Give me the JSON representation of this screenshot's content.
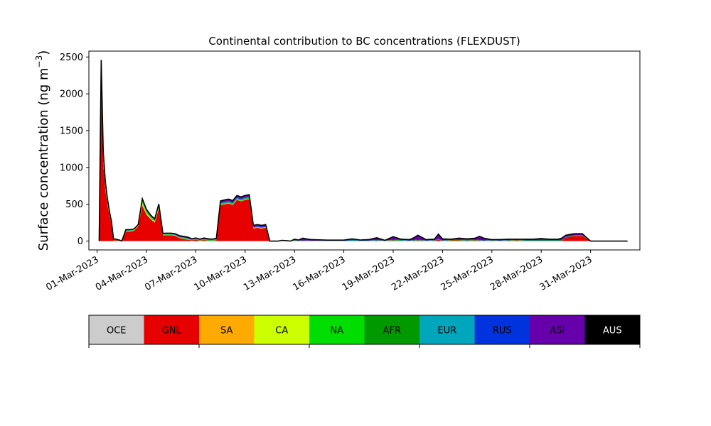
{
  "chart_data": {
    "type": "area",
    "title": "Continental contribution to BC concentrations (FLEXDUST)",
    "xlabel": "",
    "ylabel": "Surface concentration (ng m",
    "ylabel_sup": "−3",
    "ylabel_close": ")",
    "xlim": [
      "2023-02-28T12:00",
      "2023-04-03T00:00"
    ],
    "ylim": [
      -120,
      2580
    ],
    "yticks": [
      0,
      500,
      1000,
      1500,
      2000,
      2500
    ],
    "yticklabels": [
      "0",
      "500",
      "1000",
      "1500",
      "2000",
      "2500"
    ],
    "xticks": [
      "2023-03-01",
      "2023-03-04",
      "2023-03-07",
      "2023-03-10",
      "2023-03-13",
      "2023-03-16",
      "2023-03-19",
      "2023-03-22",
      "2023-03-25",
      "2023-03-28",
      "2023-03-31"
    ],
    "xticklabels": [
      "01-Mar-2023",
      "04-Mar-2023",
      "07-Mar-2023",
      "10-Mar-2023",
      "13-Mar-2023",
      "16-Mar-2023",
      "19-Mar-2023",
      "22-Mar-2023",
      "25-Mar-2023",
      "28-Mar-2023",
      "31-Mar-2023"
    ],
    "grid": false,
    "legend_position": "below",
    "regions": [
      {
        "name": "OCE",
        "color": "#cccccc",
        "text_color": "#000000"
      },
      {
        "name": "GNL",
        "color": "#e60000",
        "text_color": "#000000"
      },
      {
        "name": "SA",
        "color": "#ffaa00",
        "text_color": "#000000"
      },
      {
        "name": "CA",
        "color": "#ccff00",
        "text_color": "#000000"
      },
      {
        "name": "NA",
        "color": "#00dd00",
        "text_color": "#000000"
      },
      {
        "name": "AFR",
        "color": "#009900",
        "text_color": "#000000"
      },
      {
        "name": "EUR",
        "color": "#00a6bb",
        "text_color": "#000000"
      },
      {
        "name": "RUS",
        "color": "#0033dd",
        "text_color": "#000000"
      },
      {
        "name": "ASI",
        "color": "#6600aa",
        "text_color": "#000000"
      },
      {
        "name": "AUS",
        "color": "#000000",
        "text_color": "#ffffff"
      }
    ],
    "time": [
      "2023-03-01T03:00",
      "2023-03-01T06:00",
      "2023-03-01T09:00",
      "2023-03-01T12:00",
      "2023-03-01T15:00",
      "2023-03-01T18:00",
      "2023-03-01T21:00",
      "2023-03-02T00:00",
      "2023-03-02T03:00",
      "2023-03-02T06:00",
      "2023-03-02T09:00",
      "2023-03-02T12:00",
      "2023-03-02T18:00",
      "2023-03-03T00:00",
      "2023-03-03T06:00",
      "2023-03-03T12:00",
      "2023-03-03T18:00",
      "2023-03-04T00:00",
      "2023-03-04T06:00",
      "2023-03-04T12:00",
      "2023-03-04T18:00",
      "2023-03-05T00:00",
      "2023-03-05T06:00",
      "2023-03-05T12:00",
      "2023-03-05T18:00",
      "2023-03-06T00:00",
      "2023-03-06T06:00",
      "2023-03-06T12:00",
      "2023-03-06T18:00",
      "2023-03-07T00:00",
      "2023-03-07T06:00",
      "2023-03-07T12:00",
      "2023-03-07T18:00",
      "2023-03-08T00:00",
      "2023-03-08T06:00",
      "2023-03-08T12:00",
      "2023-03-08T18:00",
      "2023-03-09T00:00",
      "2023-03-09T06:00",
      "2023-03-09T12:00",
      "2023-03-09T18:00",
      "2023-03-10T00:00",
      "2023-03-10T06:00",
      "2023-03-10T12:00",
      "2023-03-10T18:00",
      "2023-03-11T00:00",
      "2023-03-11T06:00",
      "2023-03-11T12:00",
      "2023-03-11T18:00",
      "2023-03-12T00:00",
      "2023-03-12T06:00",
      "2023-03-12T12:00",
      "2023-03-12T18:00",
      "2023-03-13T00:00",
      "2023-03-13T06:00",
      "2023-03-13T12:00",
      "2023-03-14T00:00",
      "2023-03-15T00:00",
      "2023-03-15T12:00",
      "2023-03-16T00:00",
      "2023-03-16T12:00",
      "2023-03-17T00:00",
      "2023-03-17T12:00",
      "2023-03-18T00:00",
      "2023-03-18T12:00",
      "2023-03-19T00:00",
      "2023-03-19T12:00",
      "2023-03-20T00:00",
      "2023-03-20T06:00",
      "2023-03-20T12:00",
      "2023-03-21T00:00",
      "2023-03-21T12:00",
      "2023-03-21T18:00",
      "2023-03-22T00:00",
      "2023-03-22T12:00",
      "2023-03-23T00:00",
      "2023-03-23T12:00",
      "2023-03-24T00:00",
      "2023-03-24T06:00",
      "2023-03-24T12:00",
      "2023-03-25T00:00",
      "2023-03-25T12:00",
      "2023-03-26T00:00",
      "2023-03-26T12:00",
      "2023-03-27T00:00",
      "2023-03-27T12:00",
      "2023-03-28T00:00",
      "2023-03-28T12:00",
      "2023-03-29T00:00",
      "2023-03-29T06:00",
      "2023-03-29T12:00",
      "2023-03-29T18:00",
      "2023-03-30T00:00",
      "2023-03-30T12:00",
      "2023-03-31T00:00",
      "2023-03-31T12:00",
      "2023-04-01T00:00",
      "2023-04-01T12:00",
      "2023-04-02T00:00",
      "2023-04-02T06:00"
    ],
    "series": [
      {
        "values": [
          0,
          0,
          0,
          0,
          0,
          0,
          0,
          0,
          0,
          0,
          0,
          0,
          0,
          0,
          0,
          0,
          0,
          0,
          0,
          0,
          0,
          0,
          0,
          0,
          0,
          0,
          0,
          0,
          0,
          0,
          0,
          0,
          0,
          0,
          0,
          0,
          0,
          0,
          0,
          0,
          0,
          0,
          0,
          0,
          0,
          0,
          0,
          0,
          0,
          0,
          0,
          0,
          0,
          0,
          0,
          0,
          0,
          0,
          0,
          0,
          0,
          0,
          0,
          0,
          0,
          0,
          0,
          0,
          0,
          0,
          0,
          0,
          0,
          0,
          0,
          0,
          0,
          0,
          0,
          0,
          0,
          0,
          0,
          0,
          0,
          0,
          0,
          0,
          0,
          0,
          0,
          0,
          0,
          0,
          0,
          0,
          0,
          0,
          0,
          0
        ]
      },
      {
        "values": [
          0,
          2150,
          1050,
          700,
          500,
          350,
          230,
          10,
          15,
          10,
          5,
          0,
          130,
          130,
          140,
          200,
          480,
          360,
          300,
          250,
          440,
          80,
          80,
          80,
          70,
          40,
          30,
          20,
          10,
          20,
          5,
          15,
          5,
          5,
          10,
          490,
          500,
          510,
          490,
          560,
          540,
          560,
          570,
          170,
          180,
          170,
          180,
          0,
          0,
          0,
          0,
          0,
          0,
          0,
          0,
          0,
          0,
          0,
          0,
          0,
          0,
          0,
          0,
          5,
          0,
          10,
          0,
          0,
          5,
          10,
          0,
          5,
          20,
          0,
          10,
          10,
          5,
          10,
          5,
          0,
          5,
          0,
          5,
          10,
          5,
          5,
          5,
          5,
          5,
          5,
          50,
          60,
          70,
          70,
          0,
          0,
          0,
          0,
          0,
          0
        ]
      },
      {
        "values": [
          0,
          15,
          10,
          5,
          5,
          5,
          5,
          0,
          0,
          0,
          0,
          0,
          0,
          0,
          0,
          0,
          5,
          5,
          5,
          5,
          5,
          0,
          0,
          0,
          0,
          0,
          0,
          0,
          0,
          0,
          0,
          0,
          0,
          0,
          0,
          0,
          0,
          0,
          0,
          0,
          0,
          0,
          0,
          0,
          0,
          0,
          0,
          0,
          0,
          0,
          0,
          0,
          0,
          0,
          0,
          0,
          0,
          0,
          0,
          0,
          0,
          0,
          0,
          0,
          0,
          0,
          0,
          0,
          0,
          0,
          0,
          0,
          0,
          0,
          0,
          0,
          0,
          0,
          0,
          0,
          0,
          0,
          0,
          0,
          0,
          0,
          0,
          0,
          0,
          0,
          0,
          0,
          0,
          0,
          0,
          0,
          0,
          0,
          0,
          0
        ]
      },
      {
        "values": [
          0,
          20,
          10,
          10,
          10,
          5,
          5,
          0,
          0,
          0,
          0,
          0,
          5,
          5,
          5,
          5,
          30,
          15,
          10,
          10,
          15,
          5,
          5,
          5,
          5,
          5,
          5,
          5,
          0,
          0,
          0,
          0,
          0,
          0,
          0,
          5,
          5,
          5,
          5,
          5,
          5,
          5,
          5,
          5,
          5,
          5,
          5,
          0,
          0,
          0,
          0,
          0,
          0,
          0,
          0,
          0,
          0,
          0,
          0,
          0,
          0,
          0,
          0,
          0,
          0,
          0,
          0,
          0,
          0,
          0,
          0,
          0,
          0,
          0,
          0,
          0,
          0,
          0,
          0,
          0,
          0,
          0,
          0,
          0,
          0,
          0,
          0,
          0,
          0,
          0,
          0,
          0,
          0,
          0,
          0,
          0,
          0,
          0,
          0,
          0
        ]
      },
      {
        "values": [
          0,
          60,
          30,
          20,
          15,
          10,
          5,
          3,
          3,
          2,
          2,
          0,
          5,
          5,
          5,
          5,
          25,
          20,
          15,
          10,
          15,
          5,
          5,
          5,
          5,
          5,
          5,
          5,
          5,
          5,
          5,
          5,
          5,
          5,
          5,
          10,
          10,
          10,
          10,
          10,
          10,
          10,
          10,
          5,
          5,
          5,
          5,
          0,
          0,
          0,
          5,
          3,
          0,
          10,
          5,
          5,
          5,
          3,
          3,
          3,
          10,
          5,
          5,
          5,
          5,
          5,
          10,
          5,
          5,
          5,
          5,
          5,
          5,
          5,
          5,
          5,
          5,
          5,
          5,
          5,
          5,
          5,
          5,
          5,
          5,
          5,
          5,
          5,
          5,
          5,
          5,
          5,
          5,
          5,
          0,
          0,
          0,
          0,
          0,
          0
        ]
      },
      {
        "values": [
          0,
          40,
          20,
          15,
          10,
          8,
          5,
          2,
          2,
          2,
          1,
          0,
          3,
          3,
          3,
          3,
          10,
          8,
          5,
          5,
          5,
          3,
          3,
          3,
          3,
          3,
          3,
          3,
          3,
          3,
          3,
          3,
          3,
          3,
          3,
          5,
          5,
          5,
          5,
          5,
          5,
          5,
          5,
          3,
          3,
          3,
          3,
          0,
          0,
          0,
          0,
          0,
          0,
          0,
          0,
          0,
          0,
          0,
          0,
          0,
          0,
          0,
          0,
          0,
          0,
          0,
          0,
          0,
          0,
          0,
          0,
          0,
          0,
          0,
          0,
          0,
          0,
          0,
          0,
          0,
          0,
          0,
          0,
          0,
          0,
          0,
          0,
          0,
          0,
          0,
          0,
          0,
          0,
          0,
          0,
          0,
          0,
          0,
          0,
          0
        ]
      },
      {
        "values": [
          0,
          30,
          15,
          10,
          8,
          5,
          3,
          2,
          2,
          2,
          1,
          0,
          3,
          3,
          3,
          3,
          5,
          5,
          5,
          5,
          5,
          3,
          3,
          3,
          3,
          3,
          3,
          3,
          3,
          3,
          3,
          3,
          3,
          3,
          3,
          5,
          5,
          5,
          5,
          5,
          5,
          5,
          5,
          3,
          3,
          3,
          3,
          0,
          0,
          0,
          0,
          0,
          0,
          0,
          0,
          0,
          0,
          0,
          0,
          0,
          0,
          0,
          0,
          0,
          0,
          0,
          0,
          0,
          0,
          0,
          0,
          0,
          0,
          0,
          0,
          0,
          0,
          0,
          0,
          0,
          0,
          0,
          0,
          0,
          0,
          0,
          0,
          0,
          0,
          0,
          0,
          0,
          0,
          0,
          0,
          0,
          0,
          0,
          0,
          0
        ]
      },
      {
        "values": [
          0,
          20,
          10,
          8,
          5,
          3,
          2,
          2,
          2,
          1,
          1,
          0,
          2,
          2,
          2,
          2,
          5,
          5,
          5,
          5,
          5,
          3,
          3,
          3,
          5,
          5,
          5,
          5,
          3,
          3,
          3,
          3,
          3,
          3,
          3,
          10,
          10,
          10,
          10,
          10,
          10,
          10,
          10,
          10,
          10,
          10,
          10,
          0,
          0,
          0,
          0,
          0,
          0,
          0,
          0,
          5,
          0,
          5,
          5,
          5,
          10,
          5,
          5,
          5,
          0,
          5,
          5,
          5,
          5,
          5,
          5,
          5,
          10,
          5,
          5,
          10,
          5,
          5,
          5,
          5,
          5,
          5,
          5,
          5,
          5,
          5,
          5,
          5,
          5,
          5,
          5,
          5,
          5,
          5,
          0,
          0,
          0,
          0,
          0,
          0
        ]
      },
      {
        "values": [
          0,
          100,
          50,
          30,
          20,
          12,
          8,
          3,
          3,
          2,
          2,
          0,
          5,
          5,
          5,
          5,
          10,
          8,
          5,
          5,
          10,
          3,
          5,
          5,
          5,
          10,
          10,
          10,
          5,
          5,
          5,
          10,
          10,
          5,
          10,
          15,
          20,
          20,
          20,
          20,
          20,
          20,
          20,
          15,
          15,
          15,
          15,
          0,
          0,
          0,
          5,
          3,
          0,
          15,
          10,
          30,
          15,
          5,
          5,
          5,
          10,
          5,
          10,
          30,
          5,
          40,
          10,
          10,
          30,
          60,
          10,
          10,
          60,
          20,
          5,
          15,
          15,
          20,
          50,
          30,
          5,
          10,
          10,
          5,
          10,
          10,
          20,
          10,
          10,
          25,
          20,
          20,
          20,
          20,
          0,
          0,
          0,
          0,
          0,
          0
        ]
      },
      {
        "values": [
          0,
          25,
          15,
          10,
          8,
          5,
          3,
          2,
          2,
          1,
          1,
          0,
          2,
          2,
          2,
          2,
          5,
          5,
          5,
          5,
          5,
          3,
          3,
          3,
          3,
          3,
          3,
          3,
          3,
          3,
          3,
          3,
          3,
          3,
          3,
          5,
          5,
          5,
          5,
          5,
          5,
          5,
          5,
          3,
          3,
          3,
          3,
          0,
          0,
          0,
          0,
          0,
          0,
          0,
          0,
          0,
          0,
          0,
          0,
          0,
          0,
          0,
          0,
          0,
          0,
          0,
          0,
          0,
          0,
          0,
          0,
          0,
          0,
          0,
          0,
          0,
          0,
          0,
          0,
          0,
          0,
          0,
          0,
          0,
          0,
          0,
          0,
          0,
          0,
          0,
          0,
          0,
          0,
          0,
          0,
          0,
          0,
          0,
          0,
          0
        ]
      }
    ]
  }
}
